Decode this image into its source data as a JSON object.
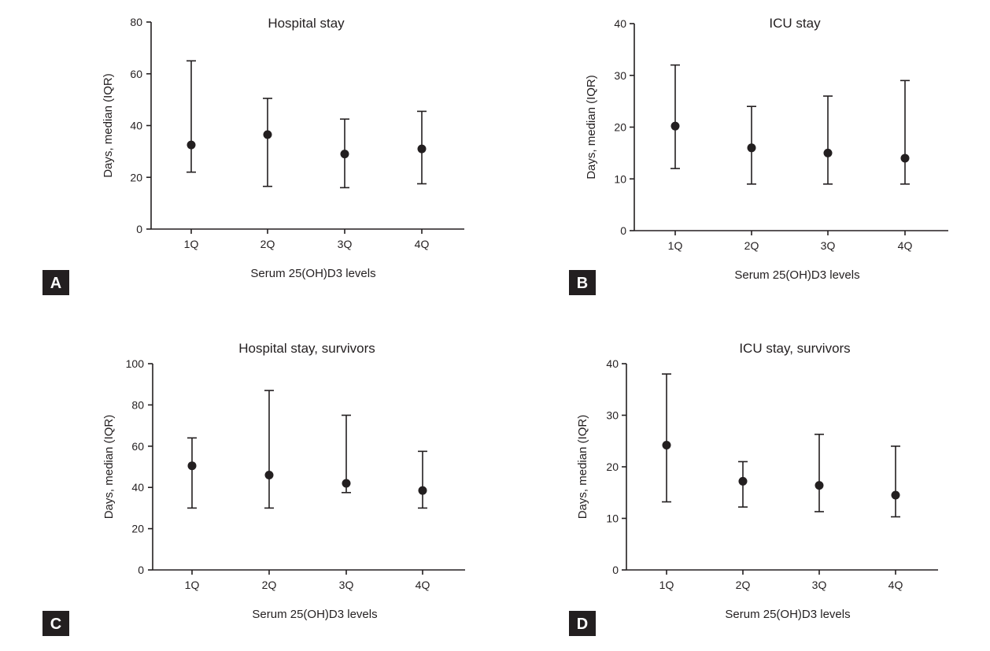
{
  "figure": {
    "ink_color": "#231f20",
    "badge_color": "#231f20",
    "badge_text_color": "#ffffff"
  },
  "chart_data": [
    {
      "panel": "A",
      "type": "errorbar",
      "title": "Hospital stay",
      "xlabel": "Serum 25(OH)D3 levels",
      "ylabel": "Days, median (IQR)",
      "categories": [
        "1Q",
        "2Q",
        "3Q",
        "4Q"
      ],
      "median": [
        32.5,
        36.5,
        29,
        31
      ],
      "q1": [
        22,
        16.5,
        16,
        17.5
      ],
      "q3": [
        65,
        50.5,
        42.5,
        45.5
      ],
      "ylim": [
        0,
        80
      ],
      "yticks": [
        0,
        20,
        40,
        60,
        80
      ]
    },
    {
      "panel": "B",
      "type": "errorbar",
      "title": "ICU stay",
      "xlabel": "Serum 25(OH)D3 levels",
      "ylabel": "Days, median (IQR)",
      "categories": [
        "1Q",
        "2Q",
        "3Q",
        "4Q"
      ],
      "median": [
        20.2,
        16,
        15,
        14
      ],
      "q1": [
        12,
        9,
        9,
        9
      ],
      "q3": [
        32,
        24,
        26,
        29
      ],
      "ylim": [
        0,
        40
      ],
      "yticks": [
        0,
        10,
        20,
        30,
        40
      ]
    },
    {
      "panel": "C",
      "type": "errorbar",
      "title": "Hospital stay, survivors",
      "xlabel": "Serum 25(OH)D3 levels",
      "ylabel": "Days, median (IQR)",
      "categories": [
        "1Q",
        "2Q",
        "3Q",
        "4Q"
      ],
      "median": [
        50.5,
        46,
        42,
        38.5
      ],
      "q1": [
        30,
        30,
        37.5,
        30
      ],
      "q3": [
        64,
        87,
        75,
        57.5
      ],
      "ylim": [
        0,
        100
      ],
      "yticks": [
        0,
        20,
        40,
        60,
        80,
        100
      ]
    },
    {
      "panel": "D",
      "type": "errorbar",
      "title": "ICU stay, survivors",
      "xlabel": "Serum 25(OH)D3 levels",
      "ylabel": "Days, median (IQR)",
      "categories": [
        "1Q",
        "2Q",
        "3Q",
        "4Q"
      ],
      "median": [
        24.2,
        17.2,
        16.4,
        14.5
      ],
      "q1": [
        13.2,
        12.2,
        11.3,
        10.3
      ],
      "q3": [
        38,
        21,
        26.3,
        24
      ],
      "ylim": [
        0,
        40
      ],
      "yticks": [
        0,
        10,
        20,
        30,
        40
      ]
    }
  ]
}
